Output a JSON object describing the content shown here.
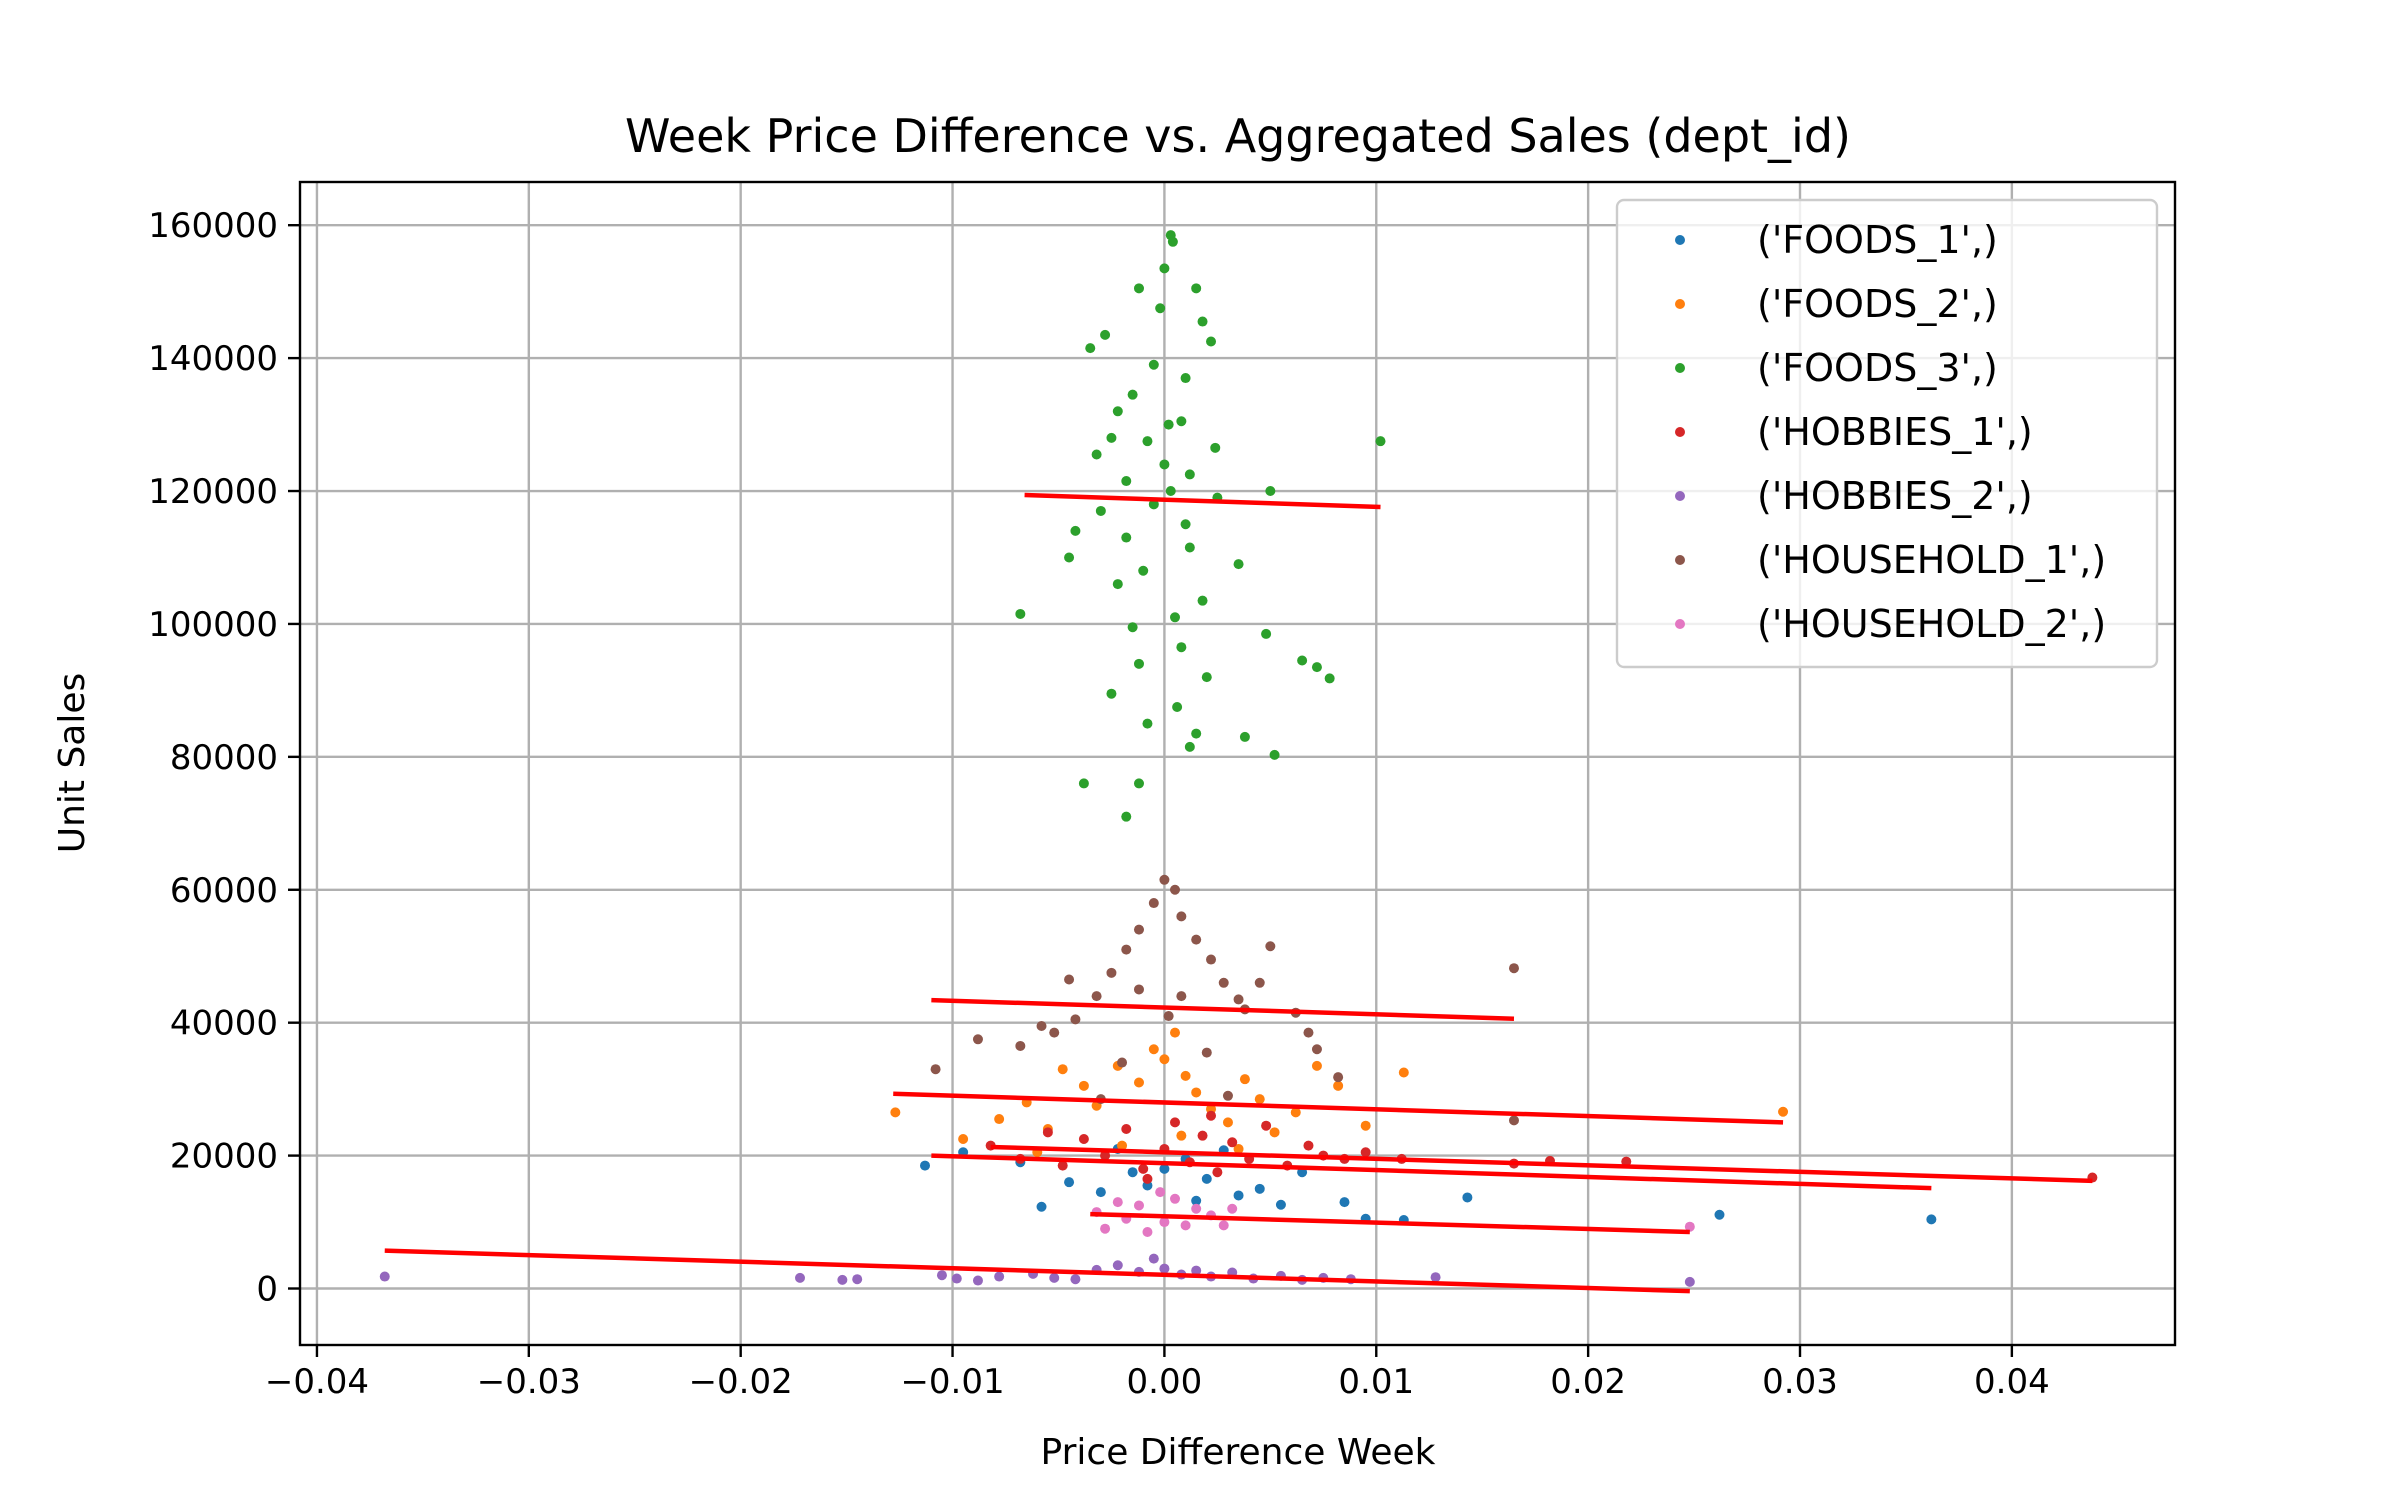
{
  "chart_data": {
    "type": "scatter",
    "title": "Week Price Difference vs. Aggregated Sales (dept_id)",
    "xlabel": "Price Difference Week",
    "ylabel": "Unit Sales",
    "xlim": [
      -0.0408,
      0.0477
    ],
    "ylim": [
      -8500,
      166500
    ],
    "xticks": [
      -0.04,
      -0.03,
      -0.02,
      -0.01,
      0.0,
      0.01,
      0.02,
      0.03,
      0.04
    ],
    "xtick_labels": [
      "−0.04",
      "−0.03",
      "−0.02",
      "−0.01",
      "0.00",
      "0.01",
      "0.02",
      "0.03",
      "0.04"
    ],
    "yticks": [
      0,
      20000,
      40000,
      60000,
      80000,
      100000,
      120000,
      140000,
      160000
    ],
    "ytick_labels": [
      "0",
      "20000",
      "40000",
      "60000",
      "80000",
      "100000",
      "120000",
      "140000",
      "160000"
    ],
    "grid": true,
    "legend_position": "top-right",
    "series": [
      {
        "name": "('FOODS_1',)",
        "color": "#1f77b4",
        "points": [
          [
            -0.0113,
            18500
          ],
          [
            -0.0095,
            20500
          ],
          [
            -0.0068,
            19000
          ],
          [
            -0.0058,
            12300
          ],
          [
            -0.0045,
            16000
          ],
          [
            -0.003,
            14500
          ],
          [
            -0.0015,
            17500
          ],
          [
            0.0,
            18000
          ],
          [
            0.001,
            19500
          ],
          [
            0.002,
            16500
          ],
          [
            0.0035,
            14000
          ],
          [
            0.0045,
            15000
          ],
          [
            0.0055,
            12600
          ],
          [
            0.0065,
            17500
          ],
          [
            0.0085,
            13000
          ],
          [
            0.0095,
            10500
          ],
          [
            0.0113,
            10300
          ],
          [
            0.0143,
            13700
          ],
          [
            0.0262,
            11100
          ],
          [
            0.0362,
            10400
          ],
          [
            -0.0022,
            21000
          ],
          [
            0.0028,
            20800
          ],
          [
            -0.0008,
            15500
          ],
          [
            0.0015,
            13200
          ]
        ],
        "fit": [
          [
            -0.011,
            20000
          ],
          [
            0.0362,
            15100
          ]
        ]
      },
      {
        "name": "('FOODS_2',)",
        "color": "#ff7f0e",
        "points": [
          [
            -0.0127,
            26500
          ],
          [
            -0.0095,
            22500
          ],
          [
            -0.0078,
            25500
          ],
          [
            -0.0065,
            28000
          ],
          [
            -0.0055,
            24000
          ],
          [
            -0.0048,
            33000
          ],
          [
            -0.0038,
            30500
          ],
          [
            -0.0032,
            27500
          ],
          [
            -0.0022,
            33500
          ],
          [
            -0.0012,
            31000
          ],
          [
            -0.0005,
            36000
          ],
          [
            0.0,
            34500
          ],
          [
            0.0005,
            38500
          ],
          [
            0.001,
            32000
          ],
          [
            0.0015,
            29500
          ],
          [
            0.0022,
            27000
          ],
          [
            0.003,
            25000
          ],
          [
            0.0038,
            31500
          ],
          [
            0.0045,
            28500
          ],
          [
            0.0052,
            23500
          ],
          [
            0.0062,
            26500
          ],
          [
            0.0072,
            33500
          ],
          [
            0.0082,
            30500
          ],
          [
            0.0095,
            24500
          ],
          [
            0.0113,
            32500
          ],
          [
            0.0292,
            26600
          ],
          [
            -0.002,
            21500
          ],
          [
            0.0008,
            23000
          ],
          [
            -0.006,
            20500
          ],
          [
            0.0035,
            21000
          ]
        ],
        "fit": [
          [
            -0.0128,
            29300
          ],
          [
            0.0292,
            25000
          ]
        ]
      },
      {
        "name": "('FOODS_3',)",
        "color": "#2ca02c",
        "points": [
          [
            0.0003,
            158500
          ],
          [
            0.0004,
            157500
          ],
          [
            0.0,
            153500
          ],
          [
            -0.0012,
            150500
          ],
          [
            0.0015,
            150500
          ],
          [
            -0.0002,
            147500
          ],
          [
            0.0018,
            145500
          ],
          [
            -0.0028,
            143500
          ],
          [
            -0.0035,
            141500
          ],
          [
            0.0022,
            142500
          ],
          [
            -0.0005,
            139000
          ],
          [
            0.001,
            137000
          ],
          [
            -0.0015,
            134500
          ],
          [
            -0.0022,
            132000
          ],
          [
            0.0008,
            130500
          ],
          [
            -0.0025,
            128000
          ],
          [
            -0.0008,
            127500
          ],
          [
            0.0024,
            126500
          ],
          [
            -0.0032,
            125500
          ],
          [
            0.0012,
            122500
          ],
          [
            -0.0018,
            121500
          ],
          [
            0.0003,
            120000
          ],
          [
            0.005,
            120000
          ],
          [
            0.0102,
            127500
          ],
          [
            -0.0042,
            114000
          ],
          [
            -0.0018,
            113000
          ],
          [
            -0.0045,
            110000
          ],
          [
            0.0012,
            111500
          ],
          [
            0.0035,
            109000
          ],
          [
            -0.0022,
            106000
          ],
          [
            0.0018,
            103500
          ],
          [
            0.0005,
            101000
          ],
          [
            -0.0068,
            101500
          ],
          [
            -0.0015,
            99500
          ],
          [
            0.0048,
            98500
          ],
          [
            0.0008,
            96500
          ],
          [
            0.0065,
            94500
          ],
          [
            0.0072,
            93500
          ],
          [
            0.0078,
            91800
          ],
          [
            -0.0012,
            94000
          ],
          [
            0.002,
            92000
          ],
          [
            -0.0025,
            89500
          ],
          [
            0.0006,
            87500
          ],
          [
            -0.0008,
            85000
          ],
          [
            0.0015,
            83500
          ],
          [
            0.0038,
            83000
          ],
          [
            0.0012,
            81500
          ],
          [
            0.0052,
            80300
          ],
          [
            -0.0012,
            76000
          ],
          [
            -0.0038,
            76000
          ],
          [
            -0.0018,
            71000
          ],
          [
            0.0002,
            130000
          ],
          [
            -0.0005,
            118000
          ],
          [
            0.001,
            115000
          ],
          [
            -0.001,
            108000
          ],
          [
            0.0,
            124000
          ],
          [
            -0.003,
            117000
          ],
          [
            0.0025,
            119000
          ]
        ],
        "fit": [
          [
            -0.0066,
            119400
          ],
          [
            0.0102,
            117600
          ]
        ]
      },
      {
        "name": "('HOBBIES_1',)",
        "color": "#d62728",
        "points": [
          [
            -0.0082,
            21500
          ],
          [
            -0.0068,
            19500
          ],
          [
            -0.0055,
            23500
          ],
          [
            -0.0048,
            18500
          ],
          [
            -0.0038,
            22500
          ],
          [
            -0.0028,
            20000
          ],
          [
            -0.0018,
            24000
          ],
          [
            -0.001,
            18000
          ],
          [
            0.0,
            21000
          ],
          [
            0.0005,
            25000
          ],
          [
            0.0012,
            19000
          ],
          [
            0.0018,
            23000
          ],
          [
            0.0025,
            17500
          ],
          [
            0.0032,
            22000
          ],
          [
            0.004,
            19500
          ],
          [
            0.0048,
            24500
          ],
          [
            0.0058,
            18500
          ],
          [
            0.0068,
            21500
          ],
          [
            0.0075,
            20000
          ],
          [
            0.0085,
            19500
          ],
          [
            0.0095,
            20500
          ],
          [
            0.0112,
            19500
          ],
          [
            0.0165,
            18800
          ],
          [
            0.0182,
            19200
          ],
          [
            0.0218,
            19100
          ],
          [
            0.0438,
            16700
          ],
          [
            -0.0008,
            16500
          ],
          [
            0.0022,
            26000
          ]
        ],
        "fit": [
          [
            -0.0082,
            21300
          ],
          [
            0.0438,
            16200
          ]
        ]
      },
      {
        "name": "('HOBBIES_2',)",
        "color": "#9467bd",
        "points": [
          [
            -0.0368,
            1800
          ],
          [
            -0.0172,
            1600
          ],
          [
            -0.0152,
            1300
          ],
          [
            -0.0145,
            1400
          ],
          [
            -0.0105,
            2000
          ],
          [
            -0.0098,
            1500
          ],
          [
            -0.0088,
            1200
          ],
          [
            -0.0078,
            1800
          ],
          [
            -0.0062,
            2200
          ],
          [
            -0.0052,
            1600
          ],
          [
            -0.0042,
            1400
          ],
          [
            -0.0032,
            2800
          ],
          [
            -0.0022,
            3500
          ],
          [
            -0.0012,
            2500
          ],
          [
            -0.0005,
            4500
          ],
          [
            0.0,
            3000
          ],
          [
            0.0008,
            2100
          ],
          [
            0.0015,
            2700
          ],
          [
            0.0022,
            1800
          ],
          [
            0.0032,
            2400
          ],
          [
            0.0042,
            1500
          ],
          [
            0.0055,
            1900
          ],
          [
            0.0065,
            1300
          ],
          [
            0.0075,
            1600
          ],
          [
            0.0088,
            1400
          ],
          [
            0.0128,
            1700
          ],
          [
            0.0248,
            1000
          ]
        ],
        "fit": [
          [
            -0.0368,
            5700
          ],
          [
            0.0248,
            -400
          ]
        ]
      },
      {
        "name": "('HOUSEHOLD_1',)",
        "color": "#8c564b",
        "points": [
          [
            0.0,
            61500
          ],
          [
            0.0005,
            60000
          ],
          [
            -0.0005,
            58000
          ],
          [
            0.0008,
            56000
          ],
          [
            -0.0012,
            54000
          ],
          [
            0.0015,
            52500
          ],
          [
            -0.0018,
            51000
          ],
          [
            0.0022,
            49500
          ],
          [
            -0.0025,
            47500
          ],
          [
            0.0028,
            46000
          ],
          [
            -0.0045,
            46500
          ],
          [
            0.0045,
            46000
          ],
          [
            0.005,
            51500
          ],
          [
            -0.0032,
            44000
          ],
          [
            0.0035,
            43500
          ],
          [
            -0.0042,
            40500
          ],
          [
            0.0038,
            42000
          ],
          [
            -0.0058,
            39500
          ],
          [
            0.0062,
            41500
          ],
          [
            -0.0052,
            38500
          ],
          [
            0.0068,
            38500
          ],
          [
            -0.0068,
            36500
          ],
          [
            0.0072,
            36000
          ],
          [
            -0.0088,
            37500
          ],
          [
            -0.0108,
            33000
          ],
          [
            0.0082,
            31800
          ],
          [
            0.0165,
            48200
          ],
          [
            -0.0012,
            45000
          ],
          [
            0.0008,
            44000
          ],
          [
            -0.002,
            34000
          ],
          [
            0.002,
            35500
          ],
          [
            0.0002,
            41000
          ],
          [
            -0.003,
            28500
          ],
          [
            0.003,
            29000
          ],
          [
            0.0165,
            25300
          ]
        ],
        "fit": [
          [
            -0.011,
            43400
          ],
          [
            0.0165,
            40600
          ]
        ]
      },
      {
        "name": "('HOUSEHOLD_2',)",
        "color": "#e377c2",
        "points": [
          [
            -0.0032,
            11500
          ],
          [
            -0.0028,
            9000
          ],
          [
            -0.0022,
            13000
          ],
          [
            -0.0018,
            10500
          ],
          [
            -0.0012,
            12500
          ],
          [
            -0.0008,
            8500
          ],
          [
            -0.0002,
            14500
          ],
          [
            0.0,
            10000
          ],
          [
            0.0005,
            13500
          ],
          [
            0.001,
            9500
          ],
          [
            0.0015,
            12000
          ],
          [
            0.0022,
            11000
          ],
          [
            0.0028,
            9500
          ],
          [
            0.0032,
            12000
          ],
          [
            0.0248,
            9300
          ]
        ],
        "fit": [
          [
            -0.0035,
            11200
          ],
          [
            0.0248,
            8500
          ]
        ]
      }
    ]
  }
}
